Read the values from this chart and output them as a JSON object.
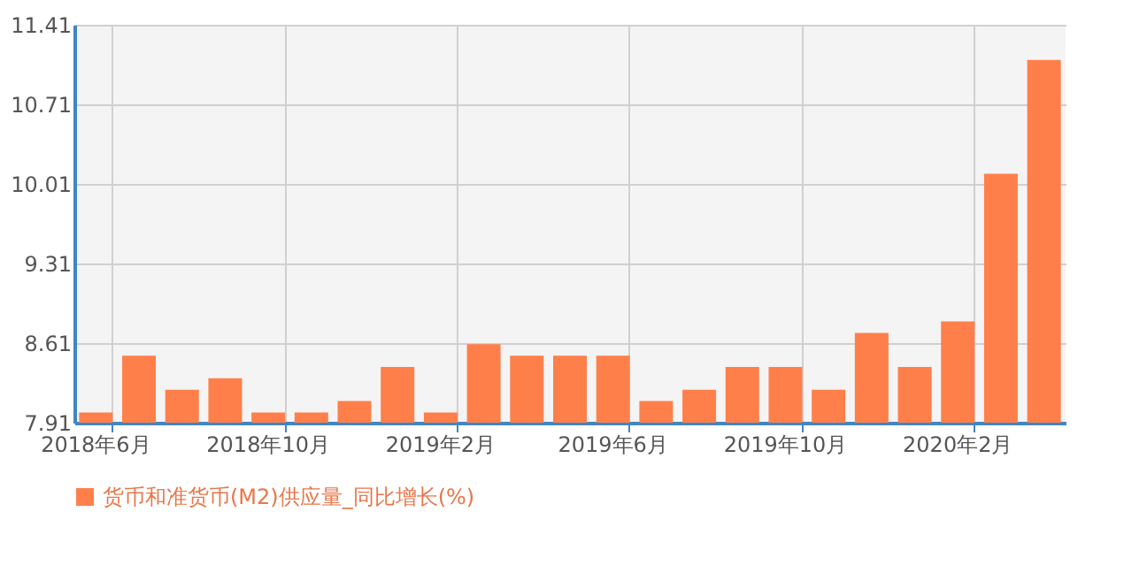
{
  "chart_data": {
    "type": "bar",
    "categories": [
      "2018年6月",
      null,
      null,
      null,
      "2018年10月",
      null,
      null,
      null,
      "2019年2月",
      null,
      null,
      null,
      "2019年6月",
      null,
      null,
      null,
      "2019年10月",
      null,
      null,
      null,
      "2020年2月",
      null,
      null
    ],
    "series": [
      {
        "name": "货币和准货币(M2)供应量_同比增长(%)",
        "color": "#ff7f4b",
        "values": [
          8.0,
          8.5,
          8.2,
          8.3,
          8.0,
          8.0,
          8.1,
          8.4,
          8.0,
          8.6,
          8.5,
          8.5,
          8.5,
          8.1,
          8.2,
          8.4,
          8.4,
          8.2,
          8.7,
          8.4,
          8.8,
          10.1,
          11.1
        ]
      }
    ],
    "ylim": [
      7.91,
      11.41
    ],
    "yticks": [
      7.91,
      8.61,
      9.31,
      10.01,
      10.71,
      11.41
    ],
    "grid": true,
    "legend": "bottom"
  }
}
